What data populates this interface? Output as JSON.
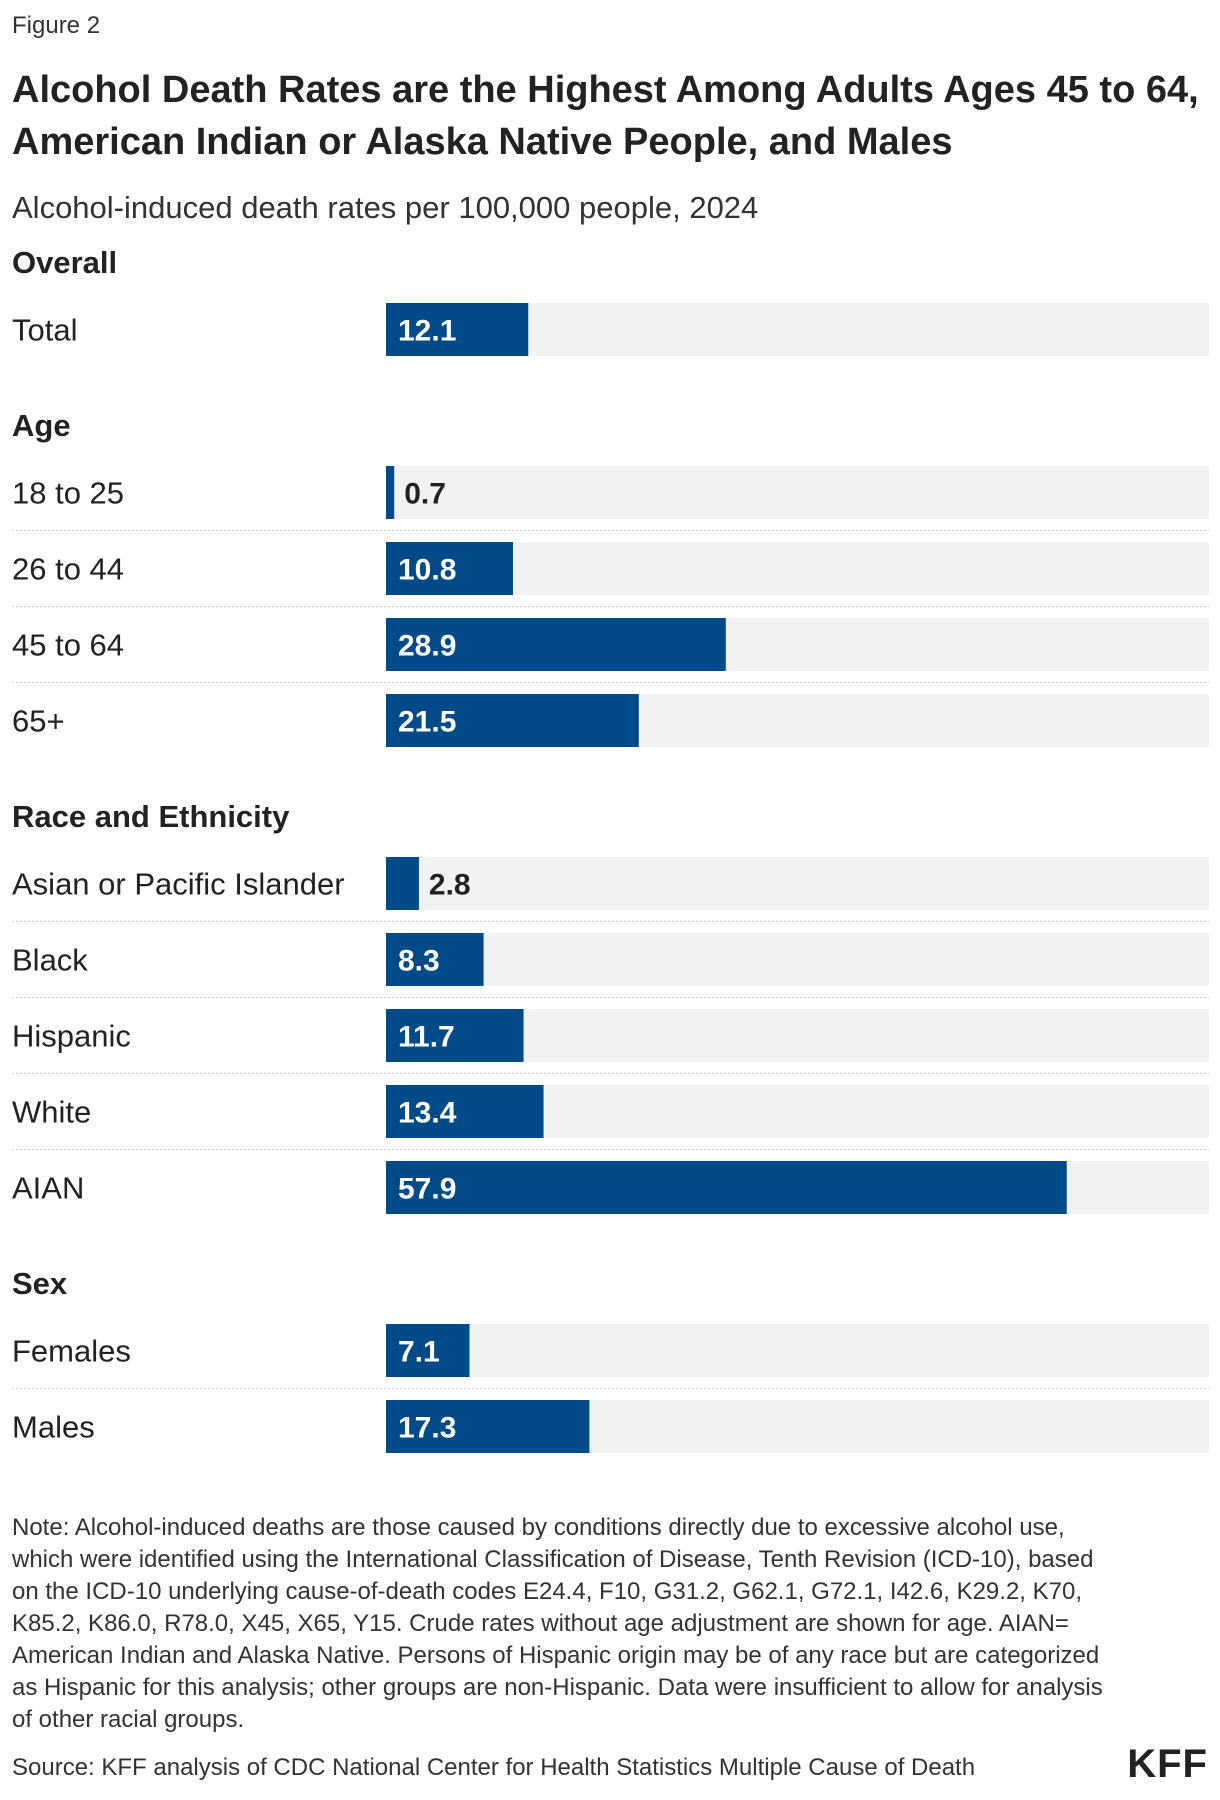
{
  "figure_label": "Figure 2",
  "title": "Alcohol Death Rates are the Highest Among Adults Ages 45 to 64, American Indian or Alaska Native People, and Males",
  "subtitle": "Alcohol-induced death rates per 100,000 people, 2024",
  "colors": {
    "bar": "#004a87",
    "track": "#f2f2f2",
    "label_inside": "#ffffff",
    "label_outside": "#222222"
  },
  "chart_data": {
    "type": "bar",
    "orientation": "horizontal",
    "xlim": [
      0,
      70
    ],
    "groups": [
      {
        "name": "Overall",
        "categories": [
          "Total"
        ],
        "values": [
          12.1
        ],
        "labels": [
          "12.1"
        ]
      },
      {
        "name": "Age",
        "categories": [
          "18 to 25",
          "26 to 44",
          "45 to 64",
          "65+"
        ],
        "values": [
          0.7,
          10.8,
          28.9,
          21.5
        ],
        "labels": [
          "0.7",
          "10.8",
          "28.9",
          "21.5"
        ]
      },
      {
        "name": "Race and Ethnicity",
        "categories": [
          "Asian or Pacific Islander",
          "Black",
          "Hispanic",
          "White",
          "AIAN"
        ],
        "values": [
          2.8,
          8.3,
          11.7,
          13.4,
          57.9
        ],
        "labels": [
          "2.8",
          "8.3",
          "11.7",
          "13.4",
          "57.9"
        ]
      },
      {
        "name": "Sex",
        "categories": [
          "Females",
          "Males"
        ],
        "values": [
          7.1,
          17.3
        ],
        "labels": [
          "7.1",
          "17.3"
        ]
      }
    ]
  },
  "note": "Note: Alcohol-induced deaths are those caused by conditions directly due to excessive alcohol use, which were identified using the International Classification of Disease, Tenth Revision (ICD-10), based on the ICD-10 underlying cause-of-death codes E24.4, F10, G31.2, G62.1, G72.1, I42.6, K29.2, K70, K85.2, K86.0, R78.0, X45, X65, Y15. Crude rates without age adjustment are shown for age. AIAN= American Indian and Alaska Native. Persons of Hispanic origin may be of any race but are categorized as Hispanic for this analysis; other groups are non-Hispanic. Data were insufficient to allow for analysis of other racial groups.",
  "source": "Source: KFF analysis of CDC National Center for Health Statistics Multiple Cause of Death",
  "logo": "KFF"
}
